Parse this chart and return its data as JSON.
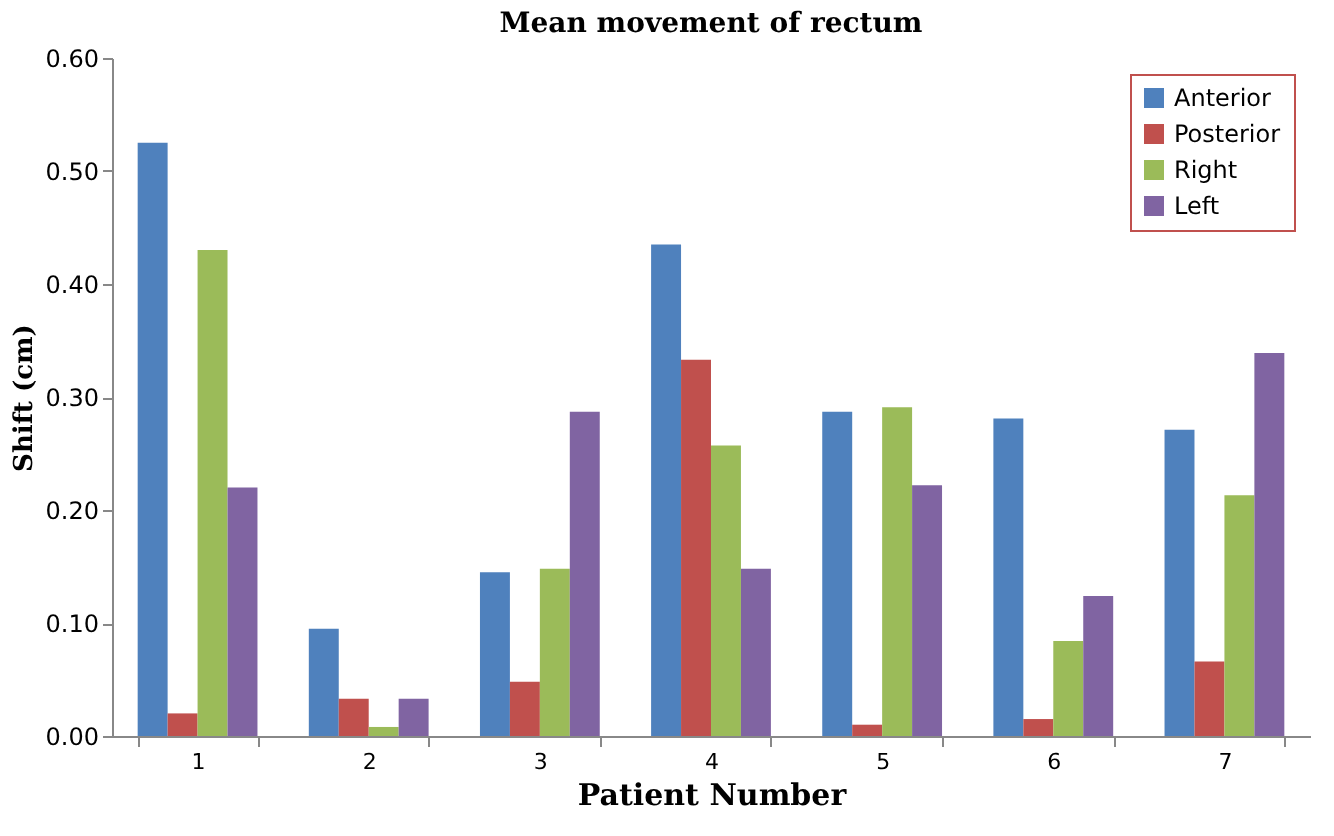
{
  "chart_data": {
    "type": "bar",
    "title": "Mean movement  of rectum",
    "xlabel": "Patient  Number",
    "ylabel": "Shift  (cm)",
    "categories": [
      "1",
      "2",
      "3",
      "4",
      "5",
      "6",
      "7"
    ],
    "series": [
      {
        "name": "Anterior",
        "color": "#4f81bd",
        "values": [
          0.525,
          0.095,
          0.145,
          0.435,
          0.287,
          0.281,
          0.271
        ]
      },
      {
        "name": "Posterior",
        "color": "#c0504d",
        "values": [
          0.02,
          0.033,
          0.048,
          0.333,
          0.01,
          0.015,
          0.066
        ]
      },
      {
        "name": "Right",
        "color": "#9bbb59",
        "values": [
          0.43,
          0.008,
          0.148,
          0.257,
          0.291,
          0.084,
          0.213
        ]
      },
      {
        "name": "Left",
        "color": "#8064a2",
        "values": [
          0.22,
          0.033,
          0.287,
          0.148,
          0.222,
          0.124,
          0.339
        ]
      }
    ],
    "ylim": [
      0,
      0.6
    ],
    "yticks": [
      {
        "value": 0,
        "label": "0.00"
      },
      {
        "value": 0.1,
        "label": "0.10"
      },
      {
        "value": 0.2,
        "label": "0.20"
      },
      {
        "value": 0.3,
        "label": "0.30"
      },
      {
        "value": 0.4,
        "label": "0.40"
      },
      {
        "value": 0.5,
        "label": "0.50"
      },
      {
        "value": 0.6,
        "label": "0.60"
      }
    ],
    "grid": false,
    "legend": "top right"
  }
}
